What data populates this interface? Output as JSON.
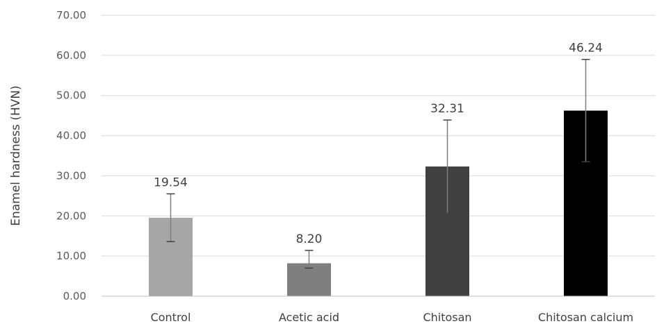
{
  "chart_data": {
    "type": "bar",
    "title": "",
    "xlabel": "",
    "ylabel": "Enamel hardness (HVN)",
    "categories": [
      "Control",
      "Acetic acid",
      "Chitosan",
      "Chitosan calcium"
    ],
    "values": [
      19.54,
      8.2,
      32.31,
      46.24
    ],
    "value_labels": [
      "19.54",
      "8.20",
      "32.31",
      "46.24"
    ],
    "error_low": [
      13.6,
      7.0,
      20.7,
      33.5
    ],
    "error_high": [
      25.5,
      11.4,
      43.9,
      59.0
    ],
    "ylim": [
      0,
      70
    ],
    "yticks": [
      0,
      10,
      20,
      30,
      40,
      50,
      60,
      70
    ],
    "ytick_labels": [
      "0.00",
      "10.00",
      "20.00",
      "30.00",
      "40.00",
      "50.00",
      "60.00",
      "70.00"
    ],
    "colors": [
      "#a6a6a6",
      "#7f7f7f",
      "#404040",
      "#000000"
    ],
    "grid": true,
    "legend": "none"
  }
}
